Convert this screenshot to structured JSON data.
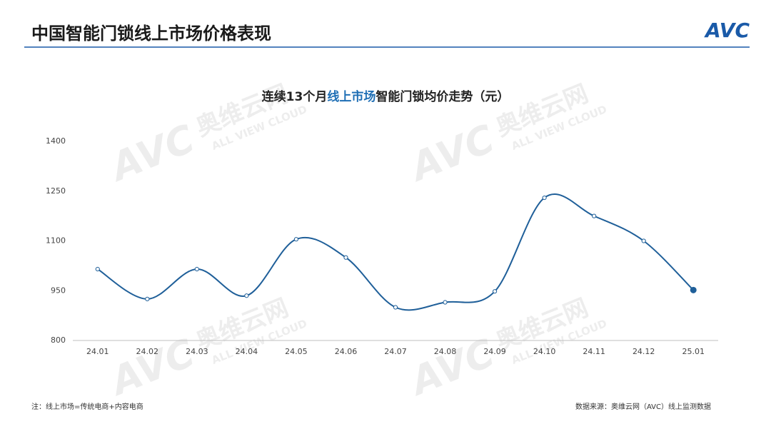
{
  "header": {
    "title": "中国智能门锁线上市场价格表现",
    "logo": "AVC"
  },
  "watermark": {
    "name": "奥维云网",
    "sub": "ALL VIEW CLOUD",
    "logo": "AVC"
  },
  "chart_data": {
    "type": "line",
    "title_parts": [
      "连续13个月",
      "线上市场",
      "智能门锁均价走势（元）"
    ],
    "title_colors": [
      "#222222",
      "#1f6fb5",
      "#222222"
    ],
    "categories": [
      "24.01",
      "24.02",
      "24.03",
      "24.04",
      "24.05",
      "24.06",
      "24.07",
      "24.08",
      "24.09",
      "24.10",
      "24.11",
      "24.12",
      "25.01"
    ],
    "series": [
      {
        "name": "均价",
        "color": "#1f5f99",
        "values": [
          1015,
          925,
          1015,
          935,
          1105,
          1050,
          900,
          915,
          948,
          1230,
          1175,
          1100,
          952
        ]
      }
    ],
    "ylim": [
      800,
      1400
    ],
    "yticks": [
      800,
      950,
      1100,
      1250,
      1400
    ],
    "grid": false,
    "smooth": true
  },
  "footer": {
    "note": "注：线上市场=传统电商+内容电商",
    "source": "数据来源：奥维云网（AVC）线上监测数据"
  }
}
